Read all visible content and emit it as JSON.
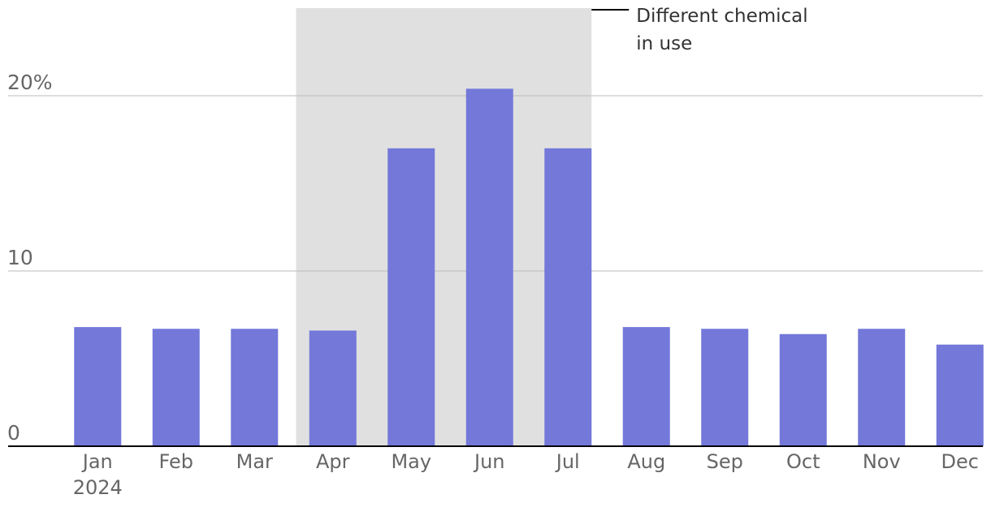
{
  "chart_data": {
    "type": "bar",
    "title": "",
    "xlabel": "",
    "ylabel": "",
    "categories": [
      "Jan",
      "Feb",
      "Mar",
      "Apr",
      "May",
      "Jun",
      "Jul",
      "Aug",
      "Sep",
      "Oct",
      "Nov",
      "Dec"
    ],
    "year_label": "2024",
    "values": [
      6.8,
      6.7,
      6.7,
      6.6,
      17.0,
      20.4,
      17.0,
      6.8,
      6.7,
      6.4,
      6.7,
      5.8
    ],
    "ylim": [
      0,
      25
    ],
    "y_ticks": [
      0,
      10,
      20
    ],
    "y_tick_labels": [
      "0",
      "10",
      "20%"
    ],
    "grid": true,
    "legend": "none",
    "highlight": {
      "from": "Apr",
      "to": "Jul",
      "label_lines": [
        "Different chemical",
        "in use"
      ]
    },
    "colors": {
      "bar": "#7378d9",
      "highlight": "#e0e0e0",
      "gridline": "#bbbbbb",
      "baseline": "#000000",
      "tick_text": "#666666",
      "annotation_text": "#333333",
      "annotation_line": "#000000"
    }
  }
}
